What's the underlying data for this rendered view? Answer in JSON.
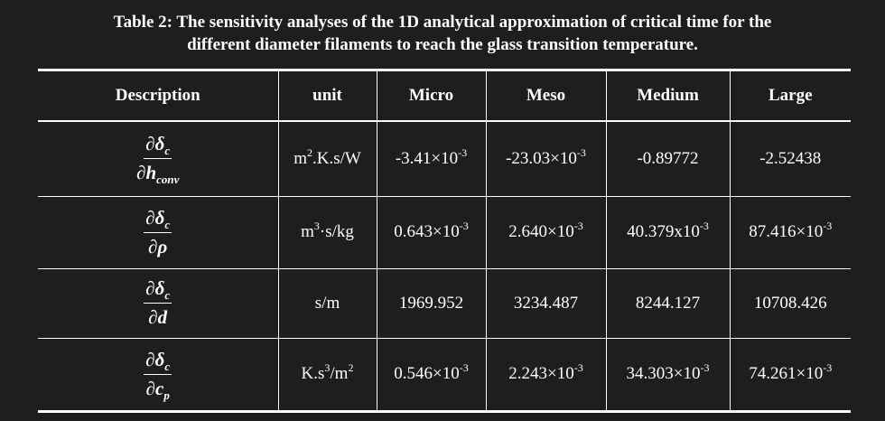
{
  "title": [
    "Table 2: The sensitivity analyses of the 1D analytical approximation of critical time for the",
    "different diameter filaments to reach the glass transition temperature."
  ],
  "table": {
    "header": [
      "Description",
      "unit",
      "Micro",
      "Meso",
      "Medium",
      "Large"
    ],
    "rows": [
      {
        "description": {
          "num": "∂δ",
          "num_sub": "c",
          "den": "∂h",
          "den_sub": "conv"
        },
        "cells": [
          [
            {
              "text": "m"
            },
            {
              "text": "2",
              "pos": "sup"
            },
            {
              "text": ".K.s/W"
            }
          ],
          [
            {
              "text": "-3.41×10"
            },
            {
              "text": "-3",
              "pos": "sup"
            }
          ],
          [
            {
              "text": "-23.03×10"
            },
            {
              "text": "-3",
              "pos": "sup"
            }
          ],
          [
            {
              "text": "-0.89772"
            }
          ],
          [
            {
              "text": "-2.52438"
            }
          ]
        ]
      },
      {
        "description": {
          "num": "∂δ",
          "num_sub": "c",
          "den": "∂ρ"
        },
        "cells": [
          [
            {
              "text": "m"
            },
            {
              "text": "3",
              "pos": "sup"
            },
            {
              "text": "·s/kg"
            }
          ],
          [
            {
              "text": "0.643×10"
            },
            {
              "text": "-3",
              "pos": "sup"
            }
          ],
          [
            {
              "text": "2.640×10"
            },
            {
              "text": "-3",
              "pos": "sup"
            }
          ],
          [
            {
              "text": "40.379x10"
            },
            {
              "text": "-3",
              "pos": "sup"
            }
          ],
          [
            {
              "text": "87.416×10"
            },
            {
              "text": "-3",
              "pos": "sup"
            }
          ]
        ]
      },
      {
        "description": {
          "num": "∂δ",
          "num_sub": "c",
          "den": "∂d"
        },
        "cells": [
          [
            {
              "text": "s/m"
            }
          ],
          [
            {
              "text": "1969.952"
            }
          ],
          [
            {
              "text": "3234.487"
            }
          ],
          [
            {
              "text": "8244.127"
            }
          ],
          [
            {
              "text": "10708.426"
            }
          ]
        ]
      },
      {
        "description": {
          "num": "∂δ",
          "num_sub": "c",
          "den": "∂c",
          "den_sub": "p"
        },
        "cells": [
          [
            {
              "text": "K.s"
            },
            {
              "text": "3",
              "pos": "sup"
            },
            {
              "text": "/m"
            },
            {
              "text": "2",
              "pos": "sup"
            }
          ],
          [
            {
              "text": "0.546×10"
            },
            {
              "text": "-3",
              "pos": "sup"
            }
          ],
          [
            {
              "text": "2.243×10"
            },
            {
              "text": "-3",
              "pos": "sup"
            }
          ],
          [
            {
              "text": "34.303×10"
            },
            {
              "text": "-3",
              "pos": "sup"
            }
          ],
          [
            {
              "text": "74.261×10"
            },
            {
              "text": "-3",
              "pos": "sup"
            }
          ]
        ]
      }
    ]
  }
}
